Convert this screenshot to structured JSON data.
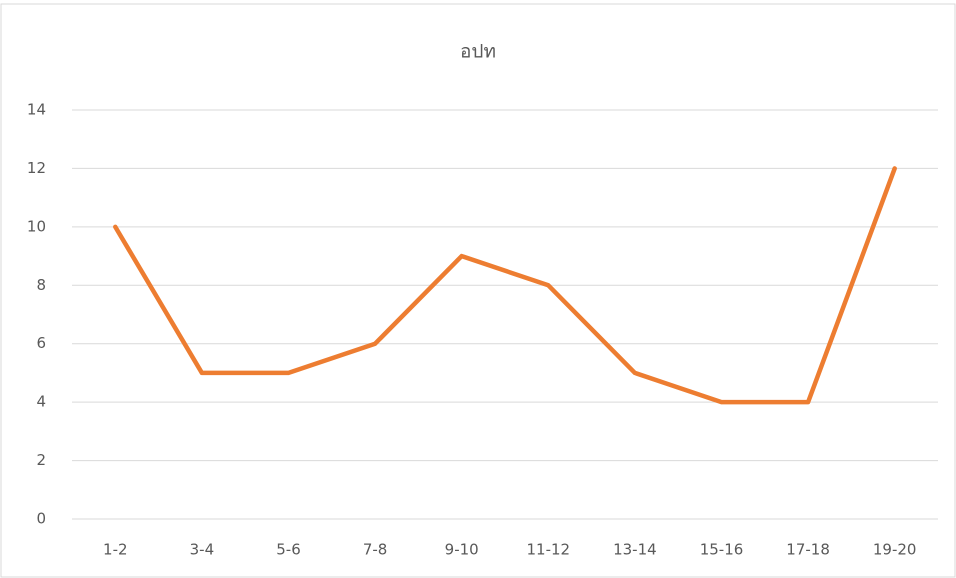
{
  "chart_data": {
    "type": "line",
    "title": "อปท",
    "categories": [
      "1-2",
      "3-4",
      "5-6",
      "7-8",
      "9-10",
      "11-12",
      "13-14",
      "15-16",
      "17-18",
      "19-20"
    ],
    "values": [
      10,
      5,
      5,
      6,
      9,
      8,
      5,
      4,
      4,
      12
    ],
    "color": "#ed7d31",
    "ylim": [
      0,
      14
    ],
    "yticks": [
      0,
      2,
      4,
      6,
      8,
      10,
      12,
      14
    ],
    "grid": true
  }
}
